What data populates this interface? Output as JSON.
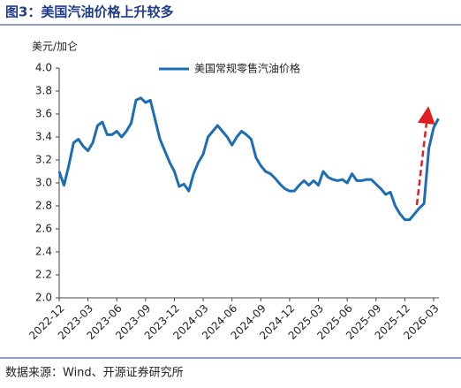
{
  "title": "图3：美国汽油价格上升较多",
  "source": "数据来源：Wind、开源证券研究所",
  "chart_data": {
    "type": "line",
    "y_unit": "美元/加仑",
    "categories": [
      "2022-12",
      null,
      null,
      null,
      null,
      null,
      "2023-03",
      null,
      null,
      null,
      null,
      null,
      "2023-06",
      null,
      null,
      null,
      null,
      null,
      "2023-09",
      null,
      null,
      null,
      null,
      null,
      "2023-12",
      null,
      null,
      null,
      null,
      null,
      "2024-03",
      null,
      null,
      null,
      null,
      null,
      "2024-06",
      null,
      null,
      null,
      null,
      null,
      "2024-09",
      null,
      null,
      null,
      null,
      null,
      "2024-12",
      null,
      null,
      null,
      null,
      null,
      "2025-03",
      null,
      null,
      null,
      null,
      null,
      "2025-06",
      null,
      null,
      null,
      null,
      null,
      "2025-09",
      null,
      null,
      null,
      null,
      null,
      "2025-12",
      null,
      null,
      null,
      null,
      null,
      "2026-03",
      null
    ],
    "series": [
      {
        "name": "美国常规零售汽油价格",
        "color": "#1c6db5",
        "values": [
          3.1,
          2.98,
          3.15,
          3.35,
          3.38,
          3.32,
          3.28,
          3.35,
          3.5,
          3.53,
          3.42,
          3.42,
          3.45,
          3.4,
          3.45,
          3.52,
          3.72,
          3.74,
          3.7,
          3.72,
          3.55,
          3.38,
          3.28,
          3.18,
          3.1,
          2.97,
          2.99,
          2.93,
          3.08,
          3.18,
          3.25,
          3.4,
          3.45,
          3.5,
          3.45,
          3.4,
          3.33,
          3.4,
          3.45,
          3.42,
          3.38,
          3.22,
          3.15,
          3.1,
          3.08,
          3.04,
          2.99,
          2.95,
          2.93,
          2.93,
          2.98,
          3.02,
          2.98,
          3.02,
          2.98,
          3.1,
          3.05,
          3.03,
          3.02,
          3.03,
          3.0,
          3.08,
          3.02,
          3.02,
          3.03,
          3.03,
          2.99,
          2.95,
          2.9,
          2.92,
          2.8,
          2.73,
          2.68,
          2.68,
          2.73,
          2.78,
          2.82,
          3.3,
          3.48,
          3.56
        ]
      }
    ],
    "ylim": [
      2.0,
      4.0
    ],
    "yticks": [
      {
        "value": 2.0,
        "label": "2.0"
      },
      2.2,
      2.4,
      2.6,
      2.8,
      {
        "value": 3.0,
        "label": "3.0"
      },
      3.2,
      3.4,
      3.6,
      3.8,
      {
        "value": 4.0,
        "label": "4.0"
      }
    ],
    "grid": false
  }
}
